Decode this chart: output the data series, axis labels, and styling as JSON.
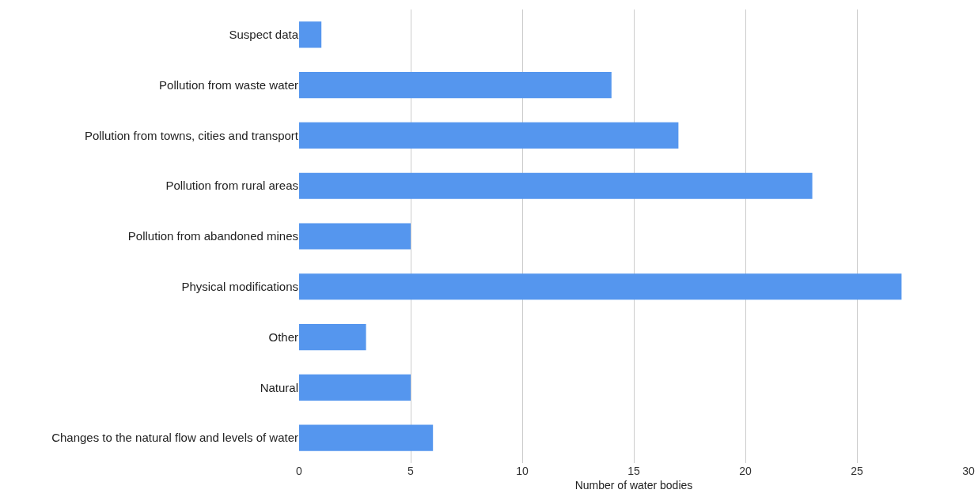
{
  "chart_data": {
    "type": "bar",
    "orientation": "horizontal",
    "xlabel": "Number of water bodies",
    "categories": [
      "Suspect data",
      "Pollution from waste water",
      "Pollution from towns, cities and transport",
      "Pollution from rural areas",
      "Pollution from abandoned mines",
      "Physical modifications",
      "Other",
      "Natural",
      "Changes to the natural flow and levels of water"
    ],
    "values": [
      1,
      14,
      17,
      23,
      5,
      27,
      3,
      5,
      6
    ],
    "color": "#5596ee",
    "xlim": [
      0,
      30
    ],
    "xticks": [
      0,
      5,
      10,
      15,
      20,
      25,
      30
    ],
    "grid": "x"
  }
}
